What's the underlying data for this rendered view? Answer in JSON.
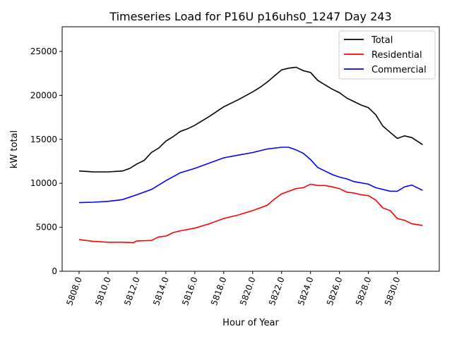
{
  "chart_data": {
    "type": "line",
    "title": "Timeseries Load for P16U p16uhs0_1247  Day 243",
    "xlabel": "Hour of Year",
    "ylabel": "kW total",
    "xlim": [
      5806.83,
      5832.9
    ],
    "ylim": [
      0,
      27800
    ],
    "xticks": [
      5808,
      5810,
      5812,
      5814,
      5816,
      5818,
      5820,
      5822,
      5824,
      5826,
      5828,
      5830
    ],
    "xtick_labels": [
      "5808.0",
      "5810.0",
      "5812.0",
      "5814.0",
      "5816.0",
      "5818.0",
      "5820.0",
      "5822.0",
      "5824.0",
      "5826.0",
      "5828.0",
      "5830.0"
    ],
    "yticks": [
      0,
      5000,
      10000,
      15000,
      20000,
      25000
    ],
    "ytick_labels": [
      "0",
      "5000",
      "10000",
      "15000",
      "20000",
      "25000"
    ],
    "grid": false,
    "legend_position": "top-right",
    "series": [
      {
        "name": "Total",
        "color": "#000000",
        "x": [
          5808,
          5809,
          5810,
          5811,
          5811.5,
          5812,
          5812.5,
          5813,
          5813.5,
          5814,
          5814.5,
          5815,
          5815.5,
          5816,
          5817,
          5818,
          5819,
          5820,
          5820.5,
          5821,
          5821.5,
          5822,
          5822.5,
          5823,
          5823.5,
          5824,
          5824.5,
          5825,
          5825.5,
          5826,
          5826.5,
          5827,
          5827.5,
          5828,
          5828.5,
          5829,
          5829.5,
          5830,
          5830.5,
          5831,
          5831.75
        ],
        "values": [
          11400,
          11300,
          11300,
          11400,
          11700,
          12200,
          12600,
          13500,
          14000,
          14800,
          15300,
          15900,
          16200,
          16600,
          17600,
          18700,
          19500,
          20400,
          20900,
          21500,
          22200,
          22900,
          23100,
          23200,
          22800,
          22600,
          21700,
          21200,
          20700,
          20300,
          19700,
          19300,
          18900,
          18600,
          17800,
          16500,
          15800,
          15100,
          15400,
          15200,
          14400
        ]
      },
      {
        "name": "Residential",
        "color": "#ff0000",
        "x": [
          5808,
          5809,
          5810,
          5811,
          5811.75,
          5812,
          5813,
          5813.5,
          5814,
          5814.5,
          5815,
          5816,
          5817,
          5818,
          5819,
          5820,
          5821,
          5821.5,
          5822,
          5822.5,
          5823,
          5823.5,
          5824,
          5824.5,
          5825,
          5825.5,
          5826,
          5826.5,
          5827,
          5827.5,
          5828,
          5828.5,
          5829,
          5829.5,
          5830,
          5830.5,
          5831,
          5831.75
        ],
        "values": [
          3600,
          3400,
          3300,
          3300,
          3250,
          3450,
          3500,
          3900,
          4000,
          4400,
          4600,
          4900,
          5400,
          6000,
          6400,
          6900,
          7500,
          8200,
          8800,
          9100,
          9400,
          9500,
          9900,
          9750,
          9750,
          9600,
          9400,
          9000,
          8900,
          8700,
          8600,
          8100,
          7200,
          6900,
          6000,
          5800,
          5400,
          5200
        ]
      },
      {
        "name": "Commercial",
        "color": "#0000ff",
        "x": [
          5808,
          5809,
          5810,
          5811,
          5812,
          5813,
          5814,
          5815,
          5816,
          5817,
          5818,
          5819,
          5820,
          5821,
          5822,
          5822.5,
          5823,
          5823.5,
          5824,
          5824.5,
          5825,
          5825.5,
          5826,
          5826.5,
          5827,
          5828,
          5828.5,
          5829,
          5829.5,
          5830,
          5830.5,
          5831,
          5831.75
        ],
        "values": [
          7800,
          7850,
          7950,
          8150,
          8700,
          9300,
          10300,
          11200,
          11700,
          12300,
          12900,
          13200,
          13500,
          13900,
          14100,
          14100,
          13800,
          13400,
          12700,
          11800,
          11400,
          11000,
          10700,
          10500,
          10200,
          9900,
          9500,
          9300,
          9100,
          9100,
          9600,
          9800,
          9200
        ]
      }
    ]
  }
}
